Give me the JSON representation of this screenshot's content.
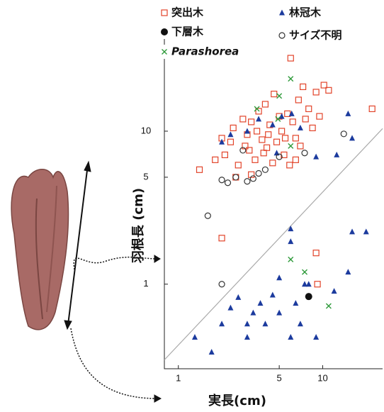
{
  "chart_data": {
    "type": "scatter",
    "xlabel": "実長(cm)",
    "ylabel": "羽根長 (cm)",
    "log_x": true,
    "log_y": true,
    "xlim": [
      0.8,
      26
    ],
    "ylim": [
      0.28,
      48
    ],
    "xticks": [
      1,
      5,
      10
    ],
    "yticks": [
      1,
      5,
      10
    ],
    "reference_line": {
      "x": [
        0.8,
        26
      ],
      "y": [
        0.32,
        10.4
      ],
      "color": "#aaaaaa"
    },
    "series": [
      {
        "name": "突出木",
        "color": "#e2442a",
        "marker": "square",
        "x": [
          1.4,
          1.8,
          2.0,
          2.1,
          2.3,
          2.4,
          2.5,
          2.6,
          2.8,
          2.9,
          3.0,
          3.1,
          3.2,
          3.4,
          3.5,
          3.6,
          3.8,
          3.9,
          4.0,
          4.2,
          4.3,
          4.5,
          4.6,
          4.8,
          5.0,
          5.2,
          5.4,
          5.5,
          5.7,
          6.0,
          6.2,
          6.5,
          6.8,
          7.0,
          7.3,
          7.6,
          8.0,
          8.5,
          9.0,
          9.5,
          10.2,
          11.0,
          2.0,
          9.0,
          9.2,
          22.0,
          3.2,
          4.1,
          5.9,
          6.5
        ],
        "y": [
          5.6,
          6.5,
          9.0,
          7.0,
          8.5,
          10.5,
          5.0,
          6.0,
          12.0,
          8.0,
          9.5,
          7.5,
          11.5,
          6.5,
          10.0,
          13.5,
          8.8,
          7.2,
          15.0,
          9.5,
          11.0,
          6.2,
          17.5,
          8.5,
          12.5,
          10.0,
          7.0,
          9.0,
          13.0,
          30.0,
          11.5,
          6.5,
          16.0,
          8.0,
          19.5,
          12.0,
          14.0,
          10.5,
          18.0,
          12.5,
          20.0,
          18.5,
          2.0,
          1.6,
          1.0,
          14.0,
          5.2,
          7.8,
          6.0,
          9.0
        ]
      },
      {
        "name": "林冠木",
        "color": "#1c3b9e",
        "marker": "triangle",
        "x": [
          2.0,
          2.3,
          3.0,
          3.6,
          4.5,
          5.2,
          6.1,
          7.0,
          9.0,
          12.5,
          15.0,
          16.0,
          4.8,
          1.3,
          1.7,
          2.0,
          2.3,
          2.6,
          3.0,
          3.3,
          3.7,
          4.0,
          4.5,
          5.0,
          6.0,
          6.0,
          6.5,
          7.0,
          7.5,
          8.0,
          9.0,
          12.0,
          15.0,
          16.0,
          20.0,
          6.0,
          5.0,
          3.0
        ],
        "y": [
          8.5,
          9.5,
          10.0,
          12.0,
          11.0,
          12.5,
          13.0,
          10.5,
          6.8,
          7.0,
          13.0,
          9.0,
          7.2,
          0.45,
          0.36,
          0.55,
          0.7,
          0.82,
          0.45,
          0.65,
          0.75,
          0.55,
          0.85,
          0.65,
          0.45,
          2.3,
          0.75,
          0.55,
          1.0,
          1.0,
          0.45,
          0.9,
          1.2,
          2.2,
          2.2,
          1.9,
          1.1,
          0.55
        ]
      },
      {
        "name": "下層木",
        "color": "#111111",
        "marker": "dot",
        "x": [
          8.0
        ],
        "y": [
          0.83
        ]
      },
      {
        "name": "サイズ不明",
        "color": "#333333",
        "marker": "circle",
        "x": [
          1.6,
          2.0,
          2.2,
          2.8,
          3.0,
          3.3,
          3.6,
          4.0,
          5.0,
          7.5,
          14.0,
          2.0,
          2.5
        ],
        "y": [
          2.8,
          4.8,
          4.6,
          7.5,
          4.7,
          4.9,
          5.3,
          5.6,
          6.8,
          7.2,
          9.6,
          1.0,
          5.0
        ]
      },
      {
        "name": "Parashorea",
        "color": "#2e9a3a",
        "marker": "x",
        "x": [
          6.0,
          5.0,
          3.5,
          6.0,
          6.0,
          7.5,
          11.0,
          4.9
        ],
        "y": [
          22.0,
          17.0,
          14.0,
          8.0,
          1.45,
          1.2,
          0.72,
          12.0
        ]
      }
    ]
  }
}
